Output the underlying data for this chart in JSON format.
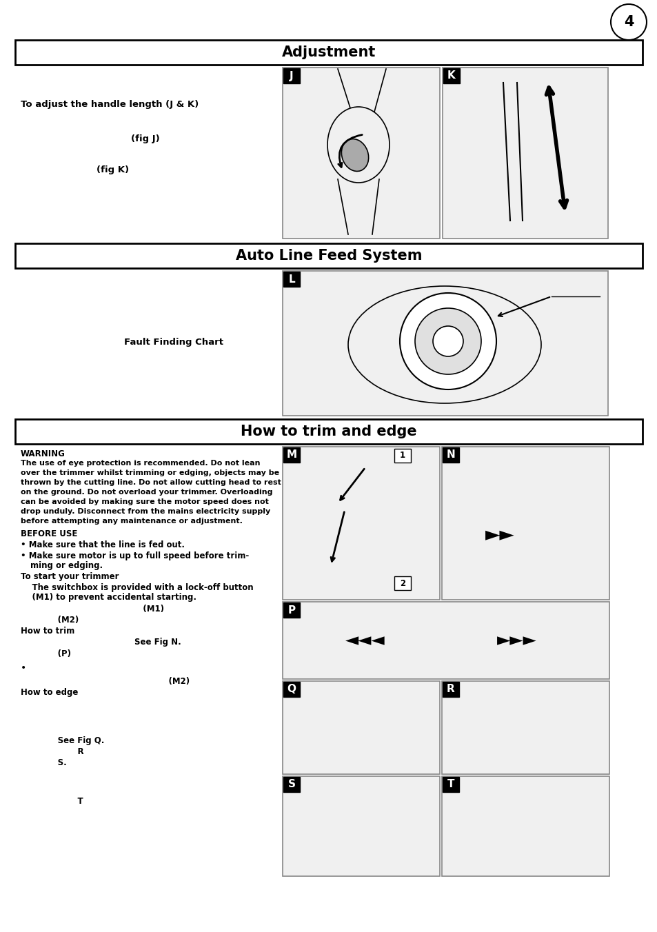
{
  "page_number": "4",
  "section1_title": "Adjustment",
  "section2_title": "Auto Line Feed System",
  "section3_title": "How to trim and edge",
  "adj_text1": "To adjust the handle length (J & K)",
  "adj_text2": "(fig J)",
  "adj_text3": "(fig K)",
  "auto_text1": "Fault Finding Chart",
  "warning_title": "WARNING",
  "warning_body1": "The use of eye protection is recommended. Do not lean",
  "warning_body2": "over the trimmer whilst trimming or edging, objects may be",
  "warning_body3": "thrown by the cutting line. Do not allow cutting head to rest",
  "warning_body4": "on the ground. Do not overload your trimmer. Overloading",
  "warning_body5": "can be avoided by making sure the motor speed does not",
  "warning_body6": "drop unduly. Disconnect from the mains electricity supply",
  "warning_body7": "before attempting any maintenance or adjustment.",
  "before_use": "BEFORE USE",
  "bullet1": "Make sure that the line is fed out.",
  "bullet2a": "Make sure motor is up to full speed before trim-",
  "bullet2b": "ming or edging.",
  "to_start": "To start your trimmer",
  "start1": "    The switchbox is provided with a lock-off button",
  "start2": "    (M1) to prevent accidental starting.",
  "m1_line": "                                           (M1)",
  "m2_line": "             (M2)",
  "how_trim": "How to trim",
  "see_fig_n": "                                        See Fig N.",
  "p_text": "             (P)",
  "m2_text2": "                                                    (M2)",
  "how_edge": "How to edge",
  "see_fig_q": "             See Fig Q.",
  "r_label": "                    R",
  "s_label": "             S.",
  "t_label": "                    T",
  "bg_color": "#ffffff"
}
